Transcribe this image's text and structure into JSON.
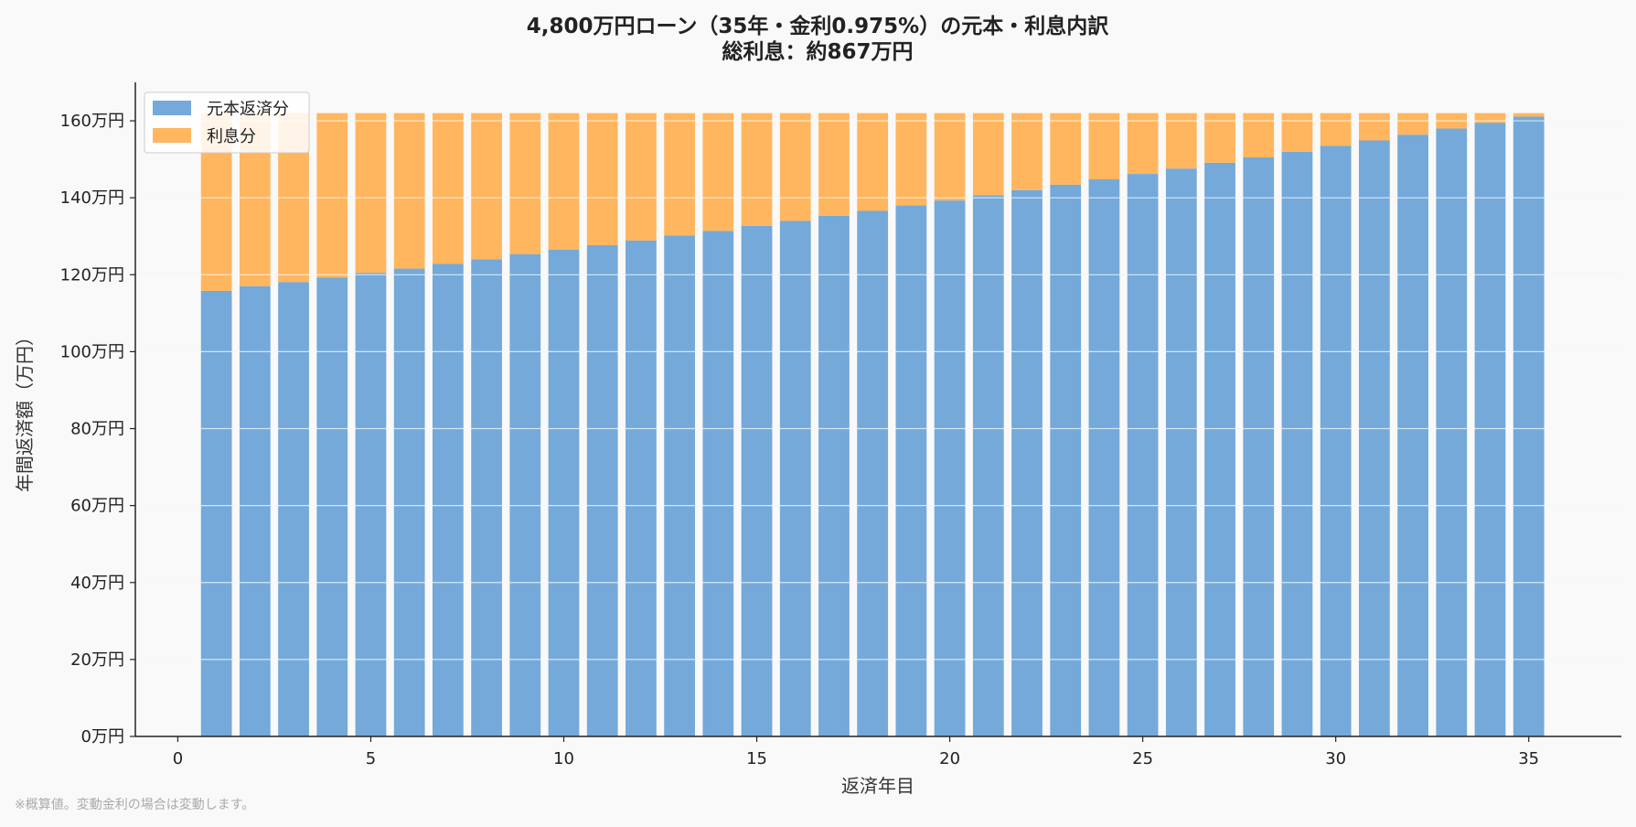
{
  "chart_data": {
    "type": "bar",
    "stacked": true,
    "title": "4,800万円ローン（35年・金利0.975%）の元本・利息内訳",
    "subtitle": "総利息：約867万円",
    "xlabel": "返済年目",
    "ylabel": "年間返済額（万円）",
    "x": [
      1,
      2,
      3,
      4,
      5,
      6,
      7,
      8,
      9,
      10,
      11,
      12,
      13,
      14,
      15,
      16,
      17,
      18,
      19,
      20,
      21,
      22,
      23,
      24,
      25,
      26,
      27,
      28,
      29,
      30,
      31,
      32,
      33,
      34,
      35
    ],
    "xticks": [
      0,
      5,
      10,
      15,
      20,
      25,
      30,
      35
    ],
    "xlim": [
      -1.1,
      37.4
    ],
    "yticks": [
      0,
      20,
      40,
      60,
      80,
      100,
      120,
      140,
      160
    ],
    "ytick_labels": [
      "0万円",
      "20万円",
      "40万円",
      "60万円",
      "80万円",
      "100万円",
      "120万円",
      "140万円",
      "160万円"
    ],
    "ylim": [
      0,
      170
    ],
    "grid": "horizontal",
    "legend_position": "top-left",
    "series": [
      {
        "name": "元本返済分",
        "color": "#74a9da",
        "values": [
          115.8,
          117.0,
          118.1,
          119.3,
          120.5,
          121.6,
          122.8,
          124.0,
          125.3,
          126.5,
          127.7,
          128.9,
          130.2,
          131.4,
          132.7,
          134.0,
          135.3,
          136.6,
          138.0,
          139.3,
          140.7,
          142.0,
          143.4,
          144.8,
          146.2,
          147.6,
          149.1,
          150.5,
          152.0,
          153.5,
          154.9,
          156.4,
          158.0,
          159.5,
          161.1
        ]
      },
      {
        "name": "利息分",
        "color": "#ffb65f",
        "values": [
          46.2,
          45.0,
          43.9,
          42.7,
          41.5,
          40.4,
          39.2,
          38.0,
          36.7,
          35.5,
          34.3,
          33.1,
          31.8,
          30.6,
          29.3,
          28.0,
          26.7,
          25.4,
          24.0,
          22.7,
          21.3,
          20.0,
          18.6,
          17.2,
          15.8,
          14.4,
          12.9,
          11.5,
          10.0,
          8.5,
          7.1,
          5.6,
          4.0,
          2.5,
          0.9
        ]
      }
    ]
  },
  "footnote": "※概算値。変動金利の場合は変動します。"
}
